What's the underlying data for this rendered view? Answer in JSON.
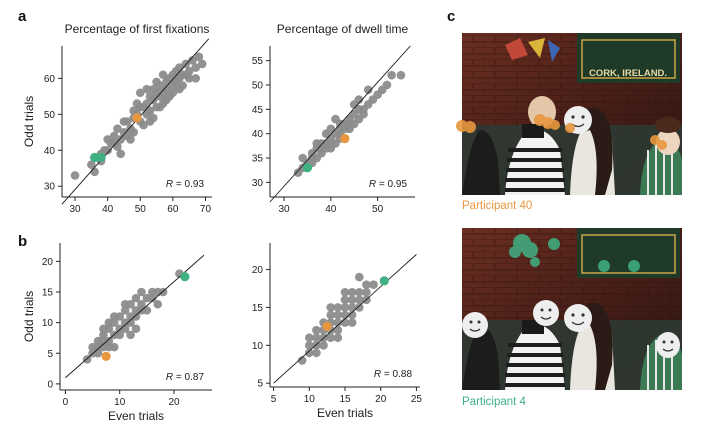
{
  "panel_letters": {
    "a": "a",
    "b": "b",
    "c": "c"
  },
  "colors": {
    "points": "#8c8c8c",
    "participant_40": "#e8973e",
    "participant_4": "#3fb183",
    "line": "#1a1a1a"
  },
  "chart_data": [
    {
      "type": "scatter",
      "title": "Percentage of first fixations",
      "xlabel": "",
      "ylabel": "Odd trials",
      "xlim": [
        26,
        72
      ],
      "ylim": [
        27,
        69
      ],
      "xticks": [
        30,
        40,
        50,
        60,
        70
      ],
      "yticks": [
        30,
        40,
        50,
        60
      ],
      "xtick_labels": [
        "30",
        "40",
        "50",
        "60",
        "70"
      ],
      "ytick_labels": [
        "30",
        "40",
        "50",
        "60"
      ],
      "annotation": {
        "r_symbol": "R",
        "value_text": " = 0.93"
      },
      "fit_line": [
        [
          26,
          25
        ],
        [
          71,
          71
        ]
      ],
      "points": [
        [
          30,
          33
        ],
        [
          35,
          36
        ],
        [
          36,
          38
        ],
        [
          37,
          38
        ],
        [
          38,
          39
        ],
        [
          39,
          40
        ],
        [
          40,
          43
        ],
        [
          41,
          42
        ],
        [
          42,
          42
        ],
        [
          43,
          41
        ],
        [
          44,
          43
        ],
        [
          45,
          45
        ],
        [
          46,
          48
        ],
        [
          46,
          44
        ],
        [
          47,
          46
        ],
        [
          48,
          49
        ],
        [
          48,
          45
        ],
        [
          49,
          50
        ],
        [
          50,
          52
        ],
        [
          50,
          48
        ],
        [
          51,
          52
        ],
        [
          51,
          47
        ],
        [
          52,
          50
        ],
        [
          52,
          53
        ],
        [
          53,
          55
        ],
        [
          53,
          51
        ],
        [
          54,
          54
        ],
        [
          54,
          49
        ],
        [
          55,
          52
        ],
        [
          55,
          56
        ],
        [
          56,
          55
        ],
        [
          56,
          58
        ],
        [
          57,
          53
        ],
        [
          57,
          56
        ],
        [
          58,
          57
        ],
        [
          58,
          59
        ],
        [
          59,
          55
        ],
        [
          59,
          60
        ],
        [
          60,
          58
        ],
        [
          60,
          61
        ],
        [
          61,
          59
        ],
        [
          61,
          62
        ],
        [
          62,
          60
        ],
        [
          62,
          63
        ],
        [
          63,
          58
        ],
        [
          64,
          64
        ],
        [
          64,
          61
        ],
        [
          65,
          62
        ],
        [
          66,
          65
        ],
        [
          67,
          63
        ],
        [
          67,
          60
        ],
        [
          68,
          66
        ],
        [
          36,
          34
        ],
        [
          42,
          44
        ],
        [
          47,
          43
        ],
        [
          50,
          56
        ],
        [
          53,
          48
        ],
        [
          55,
          59
        ],
        [
          58,
          54
        ],
        [
          62,
          57
        ],
        [
          44,
          39
        ],
        [
          56,
          52
        ],
        [
          60,
          56
        ],
        [
          45,
          48
        ],
        [
          49,
          53
        ],
        [
          57,
          61
        ],
        [
          52,
          57
        ],
        [
          40,
          40
        ],
        [
          48,
          51
        ],
        [
          54,
          57
        ],
        [
          63,
          61
        ],
        [
          65,
          60
        ],
        [
          69,
          64
        ],
        [
          43,
          46
        ],
        [
          38,
          37
        ]
      ],
      "highlights": [
        {
          "participant": "Participant 40",
          "color_key": "participant_40",
          "points": [
            [
              49,
              49
            ]
          ]
        },
        {
          "participant": "Participant 4",
          "color_key": "participant_4",
          "points": [
            [
              36,
              38
            ],
            [
              38,
              38
            ]
          ]
        }
      ]
    },
    {
      "type": "scatter",
      "title": "Percentage of dwell time",
      "xlabel": "",
      "ylabel": "",
      "xlim": [
        27,
        58
      ],
      "ylim": [
        27,
        58
      ],
      "xticks": [
        30,
        40,
        50
      ],
      "yticks": [
        30,
        35,
        40,
        45,
        50,
        55
      ],
      "xtick_labels": [
        "30",
        "40",
        "50"
      ],
      "ytick_labels": [
        "30",
        "35",
        "40",
        "45",
        "50",
        "55"
      ],
      "annotation": {
        "r_symbol": "R",
        "value_text": " = 0.95"
      },
      "fit_line": [
        [
          27,
          26
        ],
        [
          57,
          58
        ]
      ],
      "points": [
        [
          33,
          32
        ],
        [
          34,
          33
        ],
        [
          35,
          34
        ],
        [
          36,
          35
        ],
        [
          36,
          36
        ],
        [
          37,
          35
        ],
        [
          37,
          37
        ],
        [
          38,
          36
        ],
        [
          38,
          37
        ],
        [
          39,
          37
        ],
        [
          39,
          38
        ],
        [
          40,
          38
        ],
        [
          40,
          39
        ],
        [
          41,
          40
        ],
        [
          41,
          38
        ],
        [
          42,
          40
        ],
        [
          42,
          41
        ],
        [
          43,
          41
        ],
        [
          43,
          42
        ],
        [
          44,
          42
        ],
        [
          44,
          43
        ],
        [
          45,
          44
        ],
        [
          45,
          42
        ],
        [
          46,
          43
        ],
        [
          46,
          45
        ],
        [
          47,
          45
        ],
        [
          47,
          44
        ],
        [
          48,
          46
        ],
        [
          49,
          47
        ],
        [
          50,
          48
        ],
        [
          51,
          49
        ],
        [
          52,
          50
        ],
        [
          53,
          52
        ],
        [
          55,
          52
        ],
        [
          34,
          35
        ],
        [
          36,
          34
        ],
        [
          38,
          38
        ],
        [
          40,
          37
        ],
        [
          42,
          42
        ],
        [
          44,
          41
        ],
        [
          39,
          40
        ],
        [
          41,
          43
        ],
        [
          43,
          39
        ],
        [
          45,
          46
        ],
        [
          37,
          38
        ],
        [
          40,
          41
        ],
        [
          42,
          39
        ],
        [
          46,
          47
        ],
        [
          48,
          49
        ]
      ],
      "highlights": [
        {
          "participant": "Participant 40",
          "color_key": "participant_40",
          "points": [
            [
              43,
              39
            ]
          ]
        },
        {
          "participant": "Participant 4",
          "color_key": "participant_4",
          "points": [
            [
              35,
              33
            ]
          ]
        }
      ]
    },
    {
      "type": "scatter",
      "title": "",
      "xlabel": "Even trials",
      "ylabel": "Odd trials",
      "xlim": [
        -1,
        27
      ],
      "ylim": [
        -1,
        23
      ],
      "xticks": [
        0,
        10,
        20
      ],
      "yticks": [
        0,
        5,
        10,
        15,
        20
      ],
      "xtick_labels": [
        "0",
        "10",
        "20"
      ],
      "ytick_labels": [
        "0",
        "5",
        "10",
        "15",
        "20"
      ],
      "annotation": {
        "r_symbol": "R",
        "value_text": " = 0.87"
      },
      "fit_line": [
        [
          0,
          1
        ],
        [
          25.5,
          21
        ]
      ],
      "points": [
        [
          4,
          4
        ],
        [
          5,
          5
        ],
        [
          6,
          5
        ],
        [
          6,
          6
        ],
        [
          7,
          6
        ],
        [
          7,
          8
        ],
        [
          8,
          7
        ],
        [
          8,
          9
        ],
        [
          9,
          8
        ],
        [
          9,
          10
        ],
        [
          10,
          9
        ],
        [
          10,
          11
        ],
        [
          11,
          10
        ],
        [
          11,
          12
        ],
        [
          12,
          11
        ],
        [
          12,
          13
        ],
        [
          13,
          12
        ],
        [
          13,
          14
        ],
        [
          14,
          13
        ],
        [
          14,
          15
        ],
        [
          15,
          14
        ],
        [
          16,
          15
        ],
        [
          17,
          13
        ],
        [
          17,
          15
        ],
        [
          18,
          15
        ],
        [
          21,
          18
        ],
        [
          5,
          6
        ],
        [
          6,
          7
        ],
        [
          7,
          7
        ],
        [
          8,
          6
        ],
        [
          9,
          11
        ],
        [
          10,
          8
        ],
        [
          11,
          9
        ],
        [
          12,
          10
        ],
        [
          13,
          11
        ],
        [
          14,
          12
        ],
        [
          15,
          12
        ],
        [
          16,
          14
        ],
        [
          7,
          9
        ],
        [
          9,
          6
        ],
        [
          8,
          10
        ],
        [
          11,
          13
        ],
        [
          12,
          8
        ],
        [
          13,
          9
        ]
      ],
      "highlights": [
        {
          "participant": "Participant 40",
          "color_key": "participant_40",
          "points": [
            [
              7.5,
              4.5
            ]
          ]
        },
        {
          "participant": "Participant 4",
          "color_key": "participant_4",
          "points": [
            [
              22,
              17.5
            ]
          ]
        }
      ]
    },
    {
      "type": "scatter",
      "title": "",
      "xlabel": "Even trials",
      "ylabel": "",
      "xlim": [
        4.5,
        25.5
      ],
      "ylim": [
        4.5,
        23.5
      ],
      "xticks": [
        5,
        10,
        15,
        20,
        25
      ],
      "yticks": [
        5,
        10,
        15,
        20
      ],
      "xtick_labels": [
        "5",
        "10",
        "15",
        "20",
        "25"
      ],
      "ytick_labels": [
        "5",
        "10",
        "15",
        "20"
      ],
      "annotation": {
        "r_symbol": "R",
        "value_text": " = 0.88"
      },
      "fit_line": [
        [
          5,
          5
        ],
        [
          25,
          22
        ]
      ],
      "points": [
        [
          9,
          8
        ],
        [
          10,
          9
        ],
        [
          10,
          10
        ],
        [
          11,
          10
        ],
        [
          11,
          11
        ],
        [
          12,
          11
        ],
        [
          12,
          12
        ],
        [
          13,
          12
        ],
        [
          13,
          13
        ],
        [
          14,
          13
        ],
        [
          14,
          14
        ],
        [
          15,
          14
        ],
        [
          15,
          15
        ],
        [
          16,
          15
        ],
        [
          16,
          16
        ],
        [
          17,
          16
        ],
        [
          17,
          17
        ],
        [
          18,
          17
        ],
        [
          18,
          18
        ],
        [
          19,
          18
        ],
        [
          12,
          10
        ],
        [
          13,
          11
        ],
        [
          14,
          12
        ],
        [
          15,
          13
        ],
        [
          16,
          14
        ],
        [
          17,
          15
        ],
        [
          13,
          14
        ],
        [
          14,
          15
        ],
        [
          15,
          16
        ],
        [
          16,
          17
        ],
        [
          11,
          12
        ],
        [
          12,
          13
        ],
        [
          14,
          11
        ],
        [
          15,
          17
        ],
        [
          17,
          19
        ],
        [
          18,
          16
        ],
        [
          10,
          11
        ],
        [
          11,
          9
        ],
        [
          13,
          15
        ],
        [
          16,
          13
        ]
      ],
      "highlights": [
        {
          "participant": "Participant 40",
          "color_key": "participant_40",
          "points": [
            [
              12.5,
              12.5
            ]
          ]
        },
        {
          "participant": "Participant 4",
          "color_key": "participant_4",
          "points": [
            [
              20.5,
              18.5
            ]
          ]
        }
      ]
    }
  ],
  "photos": {
    "caption_top": "Participant 40",
    "caption_bottom": "Participant 4",
    "sign_text": "CORK, IRELAND."
  }
}
